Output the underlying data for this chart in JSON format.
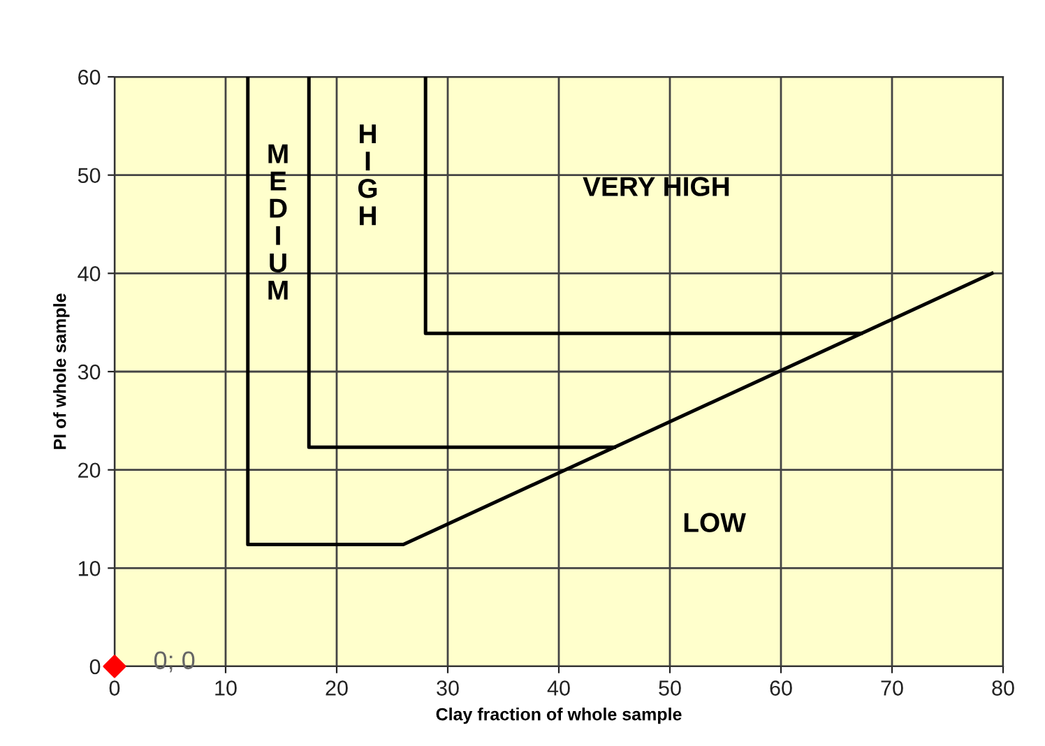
{
  "chart_data": {
    "type": "line",
    "xlabel": "Clay fraction of whole sample",
    "ylabel": "PI of whole sample",
    "xlim": [
      0,
      80
    ],
    "ylim": [
      0,
      60
    ],
    "xticks": [
      0,
      10,
      20,
      30,
      40,
      50,
      60,
      70,
      80
    ],
    "yticks": [
      0,
      10,
      20,
      30,
      40,
      50,
      60
    ],
    "grid": true,
    "legend": false,
    "series": [
      {
        "color": "#000000",
        "x": [
          12,
          12,
          26,
          79
        ],
        "values": [
          60,
          12.4,
          12.4,
          40
        ]
      },
      {
        "color": "#000000",
        "x": [
          17.5,
          17.5,
          45
        ],
        "values": [
          60,
          22.3,
          22.3
        ]
      },
      {
        "color": "#000000",
        "x": [
          28,
          28,
          67.2
        ],
        "values": [
          60,
          33.9,
          33.9
        ]
      },
      {
        "type": "scatter",
        "color": "#ff0000",
        "marker": "diamond",
        "x": [
          0
        ],
        "values": [
          0
        ]
      }
    ],
    "annotations": [
      "MEDIUM",
      "HIGH",
      "VERY HIGH",
      "LOW",
      {
        "text": "0; 0",
        "x": 0,
        "y": 0
      }
    ]
  }
}
